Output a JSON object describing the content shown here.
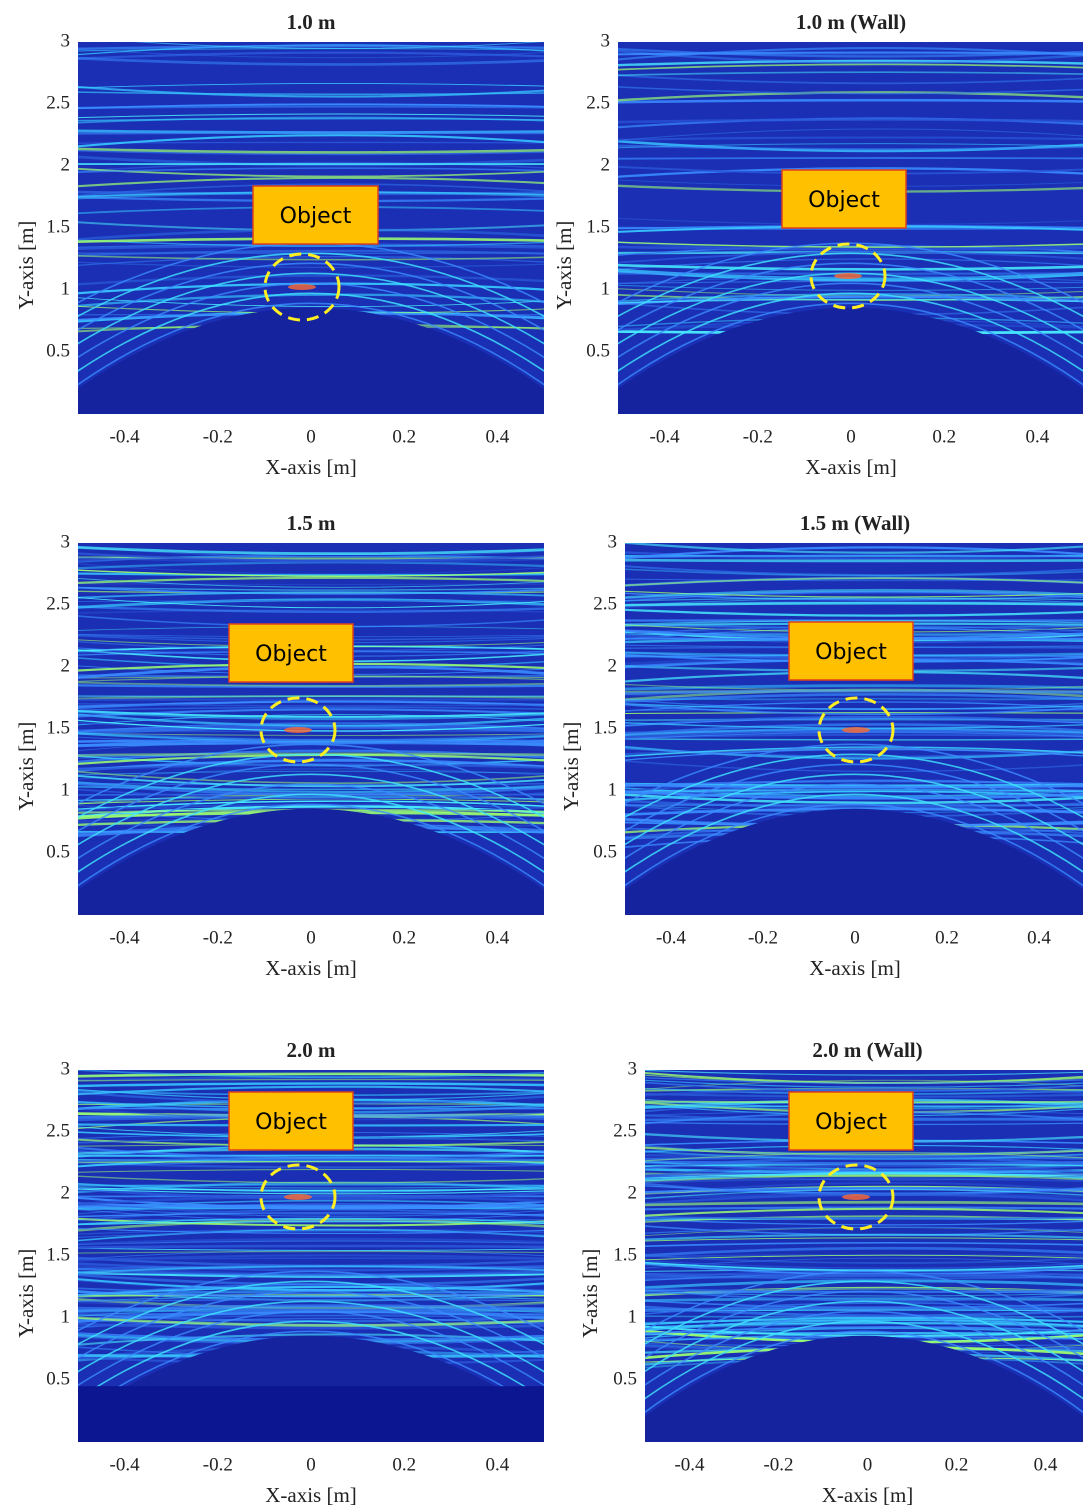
{
  "chart_data": [
    {
      "type": "heatmap",
      "title": "1.0 m",
      "x_label": "X-axis [m]",
      "y_label": "Y-axis [m]",
      "annotation": "Object",
      "xlim": [
        -0.5,
        0.5
      ],
      "ylim": [
        0,
        3
      ],
      "xticks": [
        -0.4,
        -0.2,
        0,
        0.2,
        0.4
      ],
      "yticks": [
        0.5,
        1,
        1.5,
        2,
        2.5,
        3
      ]
    },
    {
      "type": "heatmap",
      "title": "1.0 m (Wall)",
      "x_label": "X-axis [m]",
      "y_label": "Y-axis [m]",
      "annotation": "Object",
      "xlim": [
        -0.5,
        0.5
      ],
      "ylim": [
        0,
        3
      ],
      "xticks": [
        -0.4,
        -0.2,
        0,
        0.2,
        0.4
      ],
      "yticks": [
        0.5,
        1,
        1.5,
        2,
        2.5,
        3
      ]
    },
    {
      "type": "heatmap",
      "title": "1.5 m",
      "x_label": "X-axis [m]",
      "y_label": "Y-axis [m]",
      "annotation": "Object",
      "xlim": [
        -0.5,
        0.5
      ],
      "ylim": [
        0,
        3
      ],
      "xticks": [
        -0.4,
        -0.2,
        0,
        0.2,
        0.4
      ],
      "yticks": [
        0.5,
        1,
        1.5,
        2,
        2.5,
        3
      ]
    },
    {
      "type": "heatmap",
      "title": "1.5 m (Wall)",
      "x_label": "X-axis [m]",
      "y_label": "Y-axis [m]",
      "annotation": "Object",
      "xlim": [
        -0.5,
        0.5
      ],
      "ylim": [
        0,
        3
      ],
      "xticks": [
        -0.4,
        -0.2,
        0,
        0.2,
        0.4
      ],
      "yticks": [
        0.5,
        1,
        1.5,
        2,
        2.5,
        3
      ]
    },
    {
      "type": "heatmap",
      "title": "2.0 m",
      "x_label": "X-axis [m]",
      "y_label": "Y-axis [m]",
      "annotation": "Object",
      "xlim": [
        -0.5,
        0.5
      ],
      "ylim": [
        0,
        3
      ],
      "xticks": [
        -0.4,
        -0.2,
        0,
        0.2,
        0.4
      ],
      "yticks": [
        0.5,
        1,
        1.5,
        2,
        2.5,
        3
      ]
    },
    {
      "type": "heatmap",
      "title": "2.0 m (Wall)",
      "x_label": "X-axis [m]",
      "y_label": "Y-axis [m]",
      "annotation": "Object",
      "xlim": [
        -0.5,
        0.5
      ],
      "ylim": [
        0,
        3
      ],
      "xticks": [
        -0.4,
        -0.2,
        0,
        0.2,
        0.4
      ],
      "yticks": [
        0.5,
        1,
        1.5,
        2,
        2.5,
        3
      ]
    }
  ]
}
